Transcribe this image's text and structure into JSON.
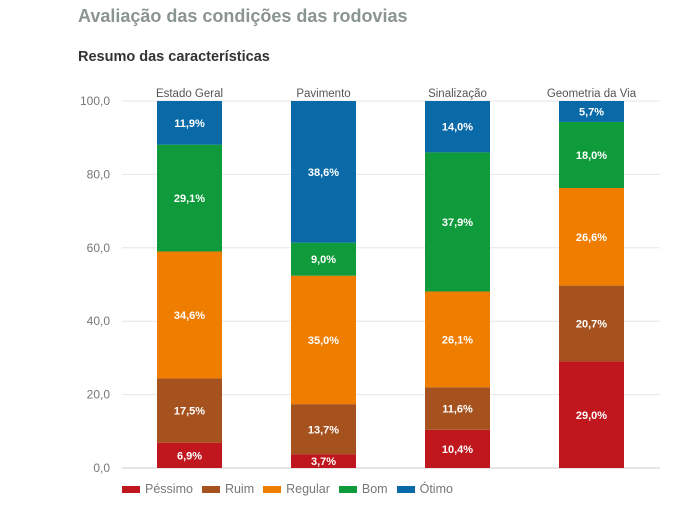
{
  "header": {
    "title": "Avaliação das condições das rodovias",
    "subtitle": "Resumo das características"
  },
  "chart_data": {
    "type": "bar",
    "stacked": true,
    "title": "Resumo das características",
    "categories": [
      "Estado Geral",
      "Pavimento",
      "Sinalização",
      "Geometria da Via"
    ],
    "ylim": [
      0,
      100
    ],
    "yticks": [
      "0,0",
      "20,0",
      "40,0",
      "60,0",
      "80,0",
      "100,0"
    ],
    "grid": true,
    "legend_position": "bottom",
    "series": [
      {
        "name": "Péssimo",
        "color": "#c0161e",
        "values": [
          6.9,
          3.7,
          10.4,
          29.0
        ],
        "labels": [
          "6,9%",
          "3,7%",
          "10,4%",
          "29,0%"
        ]
      },
      {
        "name": "Ruim",
        "color": "#a6521f",
        "values": [
          17.5,
          13.7,
          11.6,
          20.7
        ],
        "labels": [
          "17,5%",
          "13,7%",
          "11,6%",
          "20,7%"
        ]
      },
      {
        "name": "Regular",
        "color": "#ef7d00",
        "values": [
          34.6,
          35.0,
          26.1,
          26.6
        ],
        "labels": [
          "34,6%",
          "35,0%",
          "26,1%",
          "26,6%"
        ]
      },
      {
        "name": "Bom",
        "color": "#0f9a3c",
        "values": [
          29.1,
          9.0,
          37.9,
          18.0
        ],
        "labels": [
          "29,1%",
          "9,0%",
          "37,9%",
          "18,0%"
        ]
      },
      {
        "name": "Ótimo",
        "color": "#0a6aa8",
        "values": [
          11.9,
          38.6,
          14.0,
          5.7
        ],
        "labels": [
          "11,9%",
          "38,6%",
          "14,0%",
          "5,7%"
        ]
      }
    ]
  }
}
